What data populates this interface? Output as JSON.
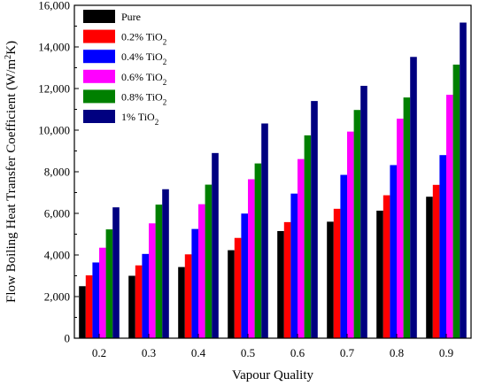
{
  "chart_data": {
    "type": "bar",
    "xlabel": "Vapour Quality",
    "ylabel_main": "Flow Boiling Heat Transfer Coefficient (W/m",
    "ylabel_sup": "2",
    "ylabel_tail": "K)",
    "ylim": [
      0,
      16000
    ],
    "y_ticks": [
      0,
      2000,
      4000,
      6000,
      8000,
      10000,
      12000,
      14000,
      16000
    ],
    "y_tick_labels": [
      "0",
      "2,000",
      "4,000",
      "6,000",
      "8,000",
      "10,000",
      "12,000",
      "14,000",
      "16,000"
    ],
    "categories": [
      "0.2",
      "0.3",
      "0.4",
      "0.5",
      "0.6",
      "0.7",
      "0.8",
      "0.9"
    ],
    "legend_position": "top-left",
    "grid": false,
    "series": [
      {
        "name": "Pure",
        "label_main": "Pure",
        "label_sub": "",
        "color": "#000000",
        "values": [
          2500,
          3000,
          3420,
          4230,
          5150,
          5600,
          6130,
          6800
        ]
      },
      {
        "name": "0.2% TiO2",
        "label_main": "0.2% TiO",
        "label_sub": "2",
        "color": "#ff0000",
        "values": [
          3020,
          3500,
          4030,
          4820,
          5580,
          6220,
          6870,
          7370
        ]
      },
      {
        "name": "0.4% TiO2",
        "label_main": "0.4% TiO",
        "label_sub": "2",
        "color": "#0000ff",
        "values": [
          3640,
          4050,
          5250,
          5990,
          6950,
          7850,
          8320,
          8800
        ]
      },
      {
        "name": "0.6% TiO2",
        "label_main": "0.6% TiO",
        "label_sub": "2",
        "color": "#ff00ff",
        "values": [
          4350,
          5520,
          6440,
          7640,
          8610,
          9930,
          10550,
          11700
        ]
      },
      {
        "name": "0.8% TiO2",
        "label_main": "0.8% TiO",
        "label_sub": "2",
        "color": "#008000",
        "values": [
          5230,
          6420,
          7380,
          8400,
          9750,
          10970,
          11570,
          13150
        ]
      },
      {
        "name": "1% TiO2",
        "label_main": "1% TiO",
        "label_sub": "2",
        "color": "#000080",
        "values": [
          6290,
          7160,
          8900,
          10320,
          11400,
          12130,
          13520,
          15170
        ]
      }
    ]
  }
}
